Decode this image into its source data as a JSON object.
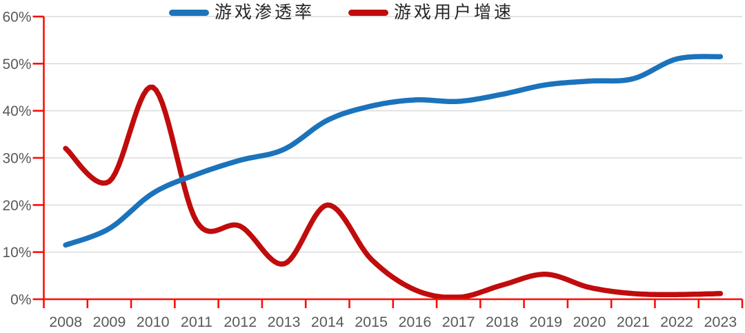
{
  "chart_data": {
    "type": "line",
    "title": "",
    "xlabel": "",
    "ylabel": "",
    "categories": [
      "2008",
      "2009",
      "2010",
      "2011",
      "2012",
      "2013",
      "2014",
      "2015",
      "2016",
      "2017",
      "2018",
      "2019",
      "2020",
      "2021",
      "2022",
      "2023"
    ],
    "series": [
      {
        "name": "游戏渗透率",
        "color": "#1B73BB",
        "values": [
          11.5,
          15,
          22.5,
          26.5,
          29.5,
          31.8,
          38,
          41,
          42.3,
          42,
          43.5,
          45.5,
          46.3,
          46.8,
          51,
          51.5
        ]
      },
      {
        "name": "游戏用户增速",
        "color": "#C00C0C",
        "values": [
          32,
          25,
          45,
          16.5,
          15.5,
          7.5,
          20,
          8.5,
          2,
          0.4,
          3,
          5.3,
          2.5,
          1.2,
          1,
          1.2
        ]
      }
    ],
    "ylim": [
      0,
      60
    ],
    "y_tick_step": 10,
    "y_tick_labels": [
      "0%",
      "10%",
      "20%",
      "30%",
      "40%",
      "50%",
      "60%"
    ],
    "grid": "horizontal",
    "smooth": true,
    "legend_position": "top",
    "axis_color": "#FB0D07",
    "grid_color": "#DADADA",
    "tick_label_color": "#595959"
  }
}
